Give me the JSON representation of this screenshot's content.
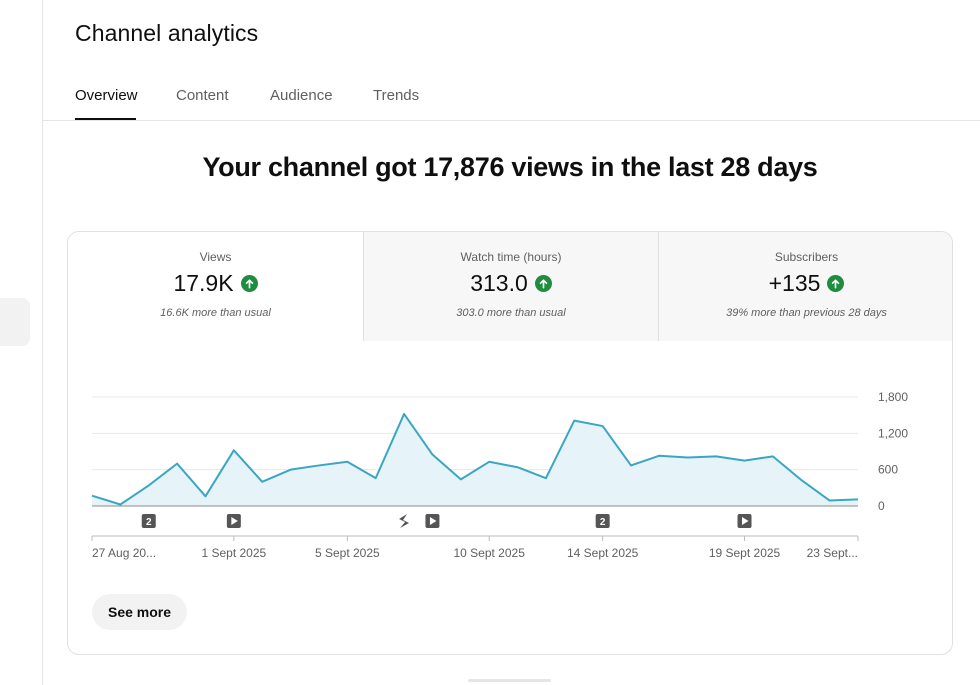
{
  "page": {
    "title": "Channel analytics"
  },
  "tabs": [
    {
      "label": "Overview",
      "active": true
    },
    {
      "label": "Content",
      "active": false
    },
    {
      "label": "Audience",
      "active": false
    },
    {
      "label": "Trends",
      "active": false
    }
  ],
  "headline": "Your channel got 17,876 views in the last 28 days",
  "metrics": [
    {
      "label": "Views",
      "value": "17.9K",
      "trend_icon": "arrow-up-circle-icon",
      "note": "16.6K more than usual"
    },
    {
      "label": "Watch time (hours)",
      "value": "313.0",
      "trend_icon": "arrow-up-circle-icon",
      "note": "303.0 more than usual"
    },
    {
      "label": "Subscribers",
      "value": "+135",
      "trend_icon": "arrow-up-circle-icon",
      "note": "39% more than previous 28 days"
    }
  ],
  "colors": {
    "line": "#3aa6c4",
    "fill": "#e6f4f9",
    "trend_up": "#1e8e3e",
    "marker": "#555555"
  },
  "chart_data": {
    "type": "area",
    "series": [
      {
        "values": [
          170,
          25,
          340,
          700,
          160,
          920,
          400,
          600,
          670,
          730,
          460,
          1520,
          850,
          440,
          730,
          640,
          460,
          1410,
          1320,
          670,
          830,
          800,
          820,
          750,
          820,
          430,
          90,
          110
        ]
      }
    ],
    "ylim": [
      0,
      1800
    ],
    "yticks": [
      "1,800",
      "1,200",
      "600",
      "0"
    ],
    "ytick_values": [
      1800,
      1200,
      600,
      0
    ],
    "xlabels": [
      {
        "index": 0,
        "label": "27 Aug 20..."
      },
      {
        "index": 5,
        "label": "1 Sept 2025"
      },
      {
        "index": 9,
        "label": "5 Sept 2025"
      },
      {
        "index": 14,
        "label": "10 Sept 2025"
      },
      {
        "index": 18,
        "label": "14 Sept 2025"
      },
      {
        "index": 23,
        "label": "19 Sept 2025"
      },
      {
        "index": 27,
        "label": "23 Sept..."
      }
    ],
    "markers": [
      {
        "index": 2,
        "kind": "count",
        "text": "2"
      },
      {
        "index": 5,
        "kind": "video",
        "text": ""
      },
      {
        "index": 11,
        "kind": "short",
        "text": ""
      },
      {
        "index": 12,
        "kind": "video",
        "text": ""
      },
      {
        "index": 18,
        "kind": "count",
        "text": "2"
      },
      {
        "index": 23,
        "kind": "video",
        "text": ""
      }
    ]
  },
  "actions": {
    "see_more": "See more"
  }
}
